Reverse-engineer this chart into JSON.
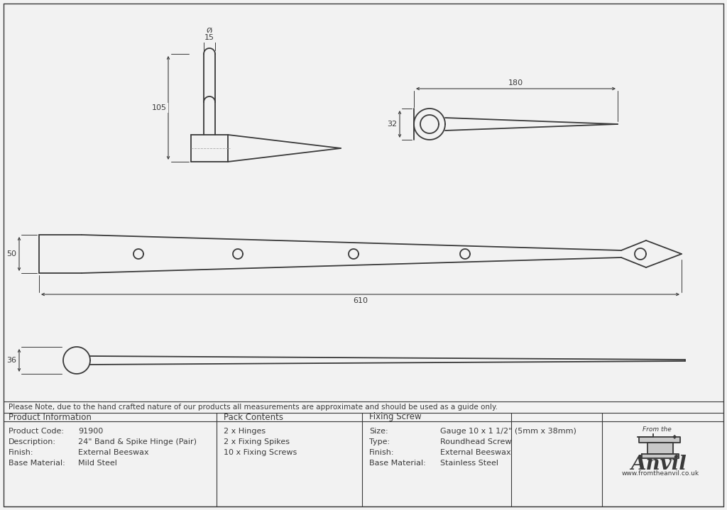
{
  "bg_color": "#f2f2f2",
  "line_color": "#3a3a3a",
  "note_text": "Please Note, due to the hand crafted nature of our products all measurements are approximate and should be used as a guide only.",
  "product_info": {
    "col1": [
      "Product Code:",
      "Description:",
      "Finish:",
      "Base Material:"
    ],
    "col1_vals": [
      "91900",
      "24\" Band & Spike Hinge (Pair)",
      "External Beeswax",
      "Mild Steel"
    ],
    "col2": [
      "2 x Hinges",
      "2 x Fixing Spikes",
      "10 x Fixing Screws"
    ],
    "col3": [
      "Size:",
      "Type:",
      "Finish:",
      "Base Material:"
    ],
    "col3_vals": [
      "Gauge 10 x 1 1/2\" (5mm x 38mm)",
      "Roundhead Screw",
      "External Beeswax",
      "Stainless Steel"
    ]
  },
  "dim_105": "105",
  "dim_15": "15",
  "dim_phi": "Ø",
  "dim_32": "32",
  "dim_180": "180",
  "dim_50": "50",
  "dim_610": "610",
  "dim_36": "36",
  "header_col1": "Product Information",
  "header_col2": "Pack Contents",
  "header_col3": "Fixing Screw",
  "anvil_line1": "From the",
  "anvil_line2": "Anvil",
  "anvil_website": "www.fromtheanvil.co.uk"
}
